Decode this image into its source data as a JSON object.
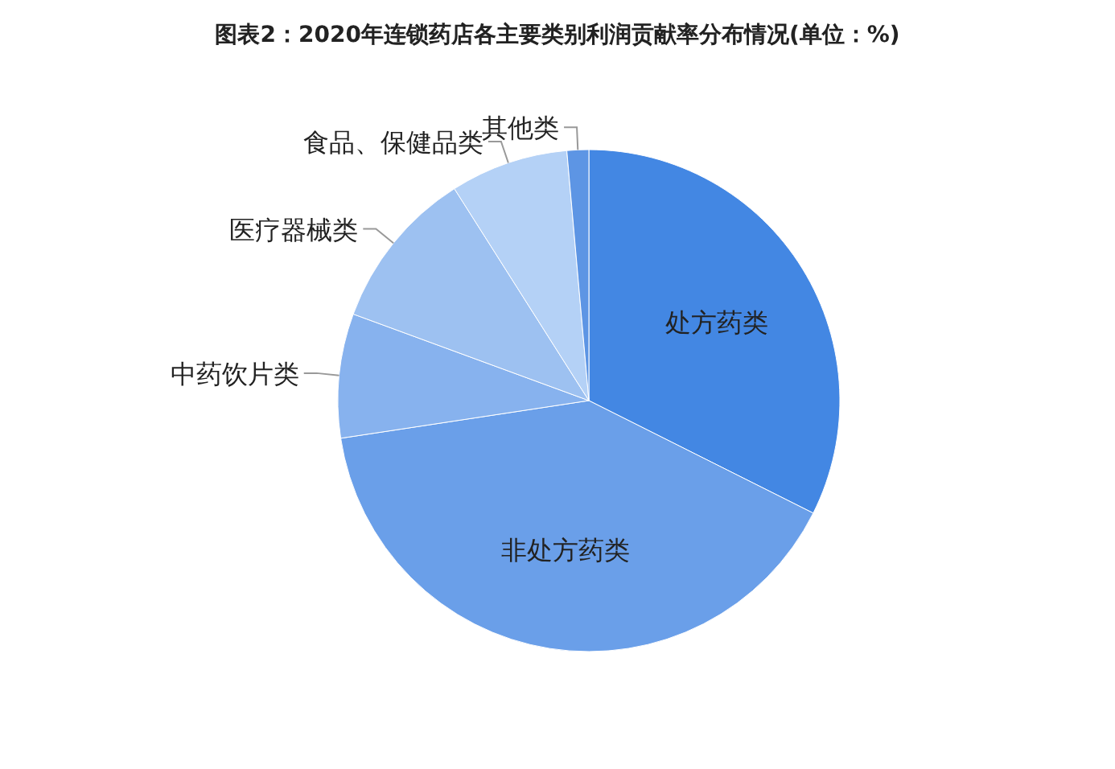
{
  "chart_data": {
    "type": "pie",
    "title": "图表2：2020年连锁药店各主要类别利润贡献率分布情况(单位：%)",
    "categories": [
      "处方药类",
      "非处方药类",
      "中药饮片类",
      "医疗器械类",
      "食品、保健品类",
      "其他类"
    ],
    "values": [
      32.4,
      40.2,
      8.0,
      10.4,
      7.6,
      1.4
    ],
    "colors": [
      "#4387e3",
      "#6a9fe9",
      "#87b2ee",
      "#9dc1f1",
      "#b4d1f6",
      "#5d95e4"
    ],
    "legend": false
  }
}
